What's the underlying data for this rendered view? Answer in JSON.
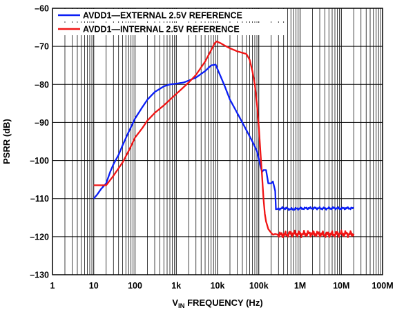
{
  "chart_data": {
    "type": "line",
    "xscale": "log",
    "xlim": [
      1,
      100000000
    ],
    "ylim": [
      -130,
      -60
    ],
    "grid": true,
    "legend_position": "top-left",
    "xlabel_main": "V",
    "xlabel_sub": "IN",
    "xlabel_rest": " FREQUENCY (Hz)",
    "ylabel": "PSRR (dB)",
    "x_ticks": [
      {
        "value": 1,
        "label": "1"
      },
      {
        "value": 10,
        "label": "10"
      },
      {
        "value": 100,
        "label": "100"
      },
      {
        "value": 1000,
        "label": "1k"
      },
      {
        "value": 10000,
        "label": "10k"
      },
      {
        "value": 100000,
        "label": "100k"
      },
      {
        "value": 1000000,
        "label": "1M"
      },
      {
        "value": 10000000,
        "label": "10M"
      },
      {
        "value": 100000000,
        "label": "100M"
      }
    ],
    "y_ticks": [
      {
        "value": -60,
        "label": "–60"
      },
      {
        "value": -70,
        "label": "–70"
      },
      {
        "value": -80,
        "label": "–80"
      },
      {
        "value": -90,
        "label": "–90"
      },
      {
        "value": -100,
        "label": "–100"
      },
      {
        "value": -110,
        "label": "–110"
      },
      {
        "value": -120,
        "label": "–120"
      },
      {
        "value": -130,
        "label": "–130"
      }
    ],
    "series": [
      {
        "name": "AVDD1—EXTERNAL 2.5V REFERENCE",
        "color": "#0a1ef5",
        "x": [
          10,
          12,
          15,
          20,
          25,
          30,
          40,
          50,
          70,
          100,
          150,
          200,
          300,
          500,
          700,
          1000,
          1500,
          2000,
          3000,
          5000,
          7000,
          9000,
          10000,
          12000,
          15000,
          20000,
          30000,
          50000,
          70000,
          90000,
          100000,
          110000,
          120000,
          130000,
          150000,
          170000,
          200000,
          220000,
          250000,
          260000,
          300000,
          400000,
          600000,
          1000000,
          2000000,
          4000000,
          7000000,
          10000000,
          15000000,
          20000000
        ],
        "y": [
          -110,
          -109,
          -107.5,
          -106,
          -103,
          -101,
          -98.5,
          -96,
          -92.5,
          -89,
          -86,
          -84,
          -82,
          -80.5,
          -80,
          -79.8,
          -79.5,
          -79,
          -78.2,
          -76.5,
          -75,
          -74.8,
          -76,
          -78,
          -80.5,
          -84,
          -87.5,
          -92,
          -95,
          -97.5,
          -99.5,
          -101.5,
          -103,
          -102.5,
          -102.5,
          -106,
          -106,
          -105.5,
          -108,
          -112.8,
          -112.7,
          -112.5,
          -112.8,
          -112.6,
          -112.5,
          -112.6,
          -112.5,
          -112.6,
          -112.5,
          -112.6
        ]
      },
      {
        "name": "AVDD1—INTERNAL 2.5V REFERENCE",
        "color": "#f01414",
        "x": [
          10,
          15,
          20,
          30,
          50,
          70,
          100,
          150,
          200,
          300,
          500,
          1000,
          2000,
          3000,
          5000,
          7000,
          8500,
          9500,
          10000,
          12000,
          15000,
          20000,
          30000,
          50000,
          60000,
          70000,
          80000,
          90000,
          100000,
          110000,
          120000,
          130000,
          140000,
          150000,
          170000,
          200000,
          220000,
          250000,
          300000,
          400000,
          600000,
          1000000,
          2000000,
          4000000,
          7000000,
          10000000,
          15000000,
          20000000
        ],
        "y": [
          -106.5,
          -106.5,
          -106.5,
          -104,
          -100.5,
          -97.5,
          -94,
          -91.5,
          -89.5,
          -87.5,
          -85.5,
          -82.5,
          -79.5,
          -77.5,
          -74,
          -71,
          -69.2,
          -68.7,
          -68.8,
          -69.2,
          -69.8,
          -70.5,
          -71.3,
          -72,
          -73.5,
          -76.5,
          -80,
          -85,
          -91,
          -98,
          -104,
          -110,
          -114,
          -116,
          -118,
          -119,
          -119.5,
          -119.3,
          -119.5,
          -119.5,
          -119.2,
          -119.3,
          -119.2,
          -119.4,
          -119.3,
          -119.2,
          -119.3,
          -119.3
        ]
      }
    ]
  }
}
